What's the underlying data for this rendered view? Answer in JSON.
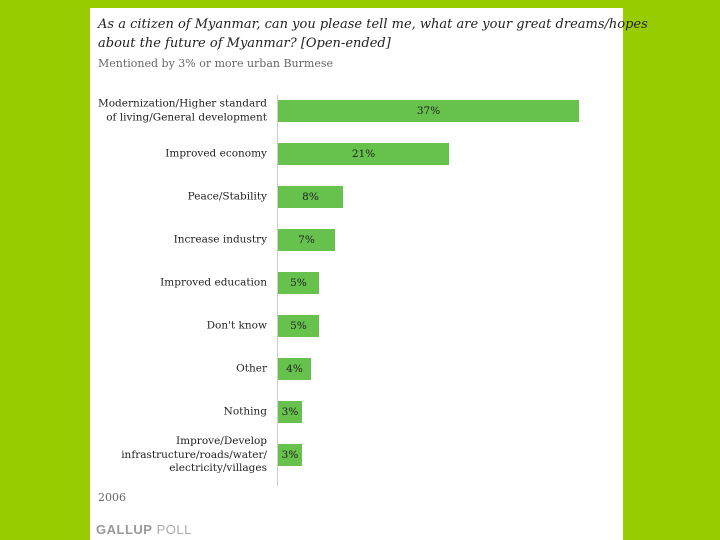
{
  "chart_data": {
    "type": "bar",
    "orientation": "horizontal",
    "title_line1": "As a citizen of Myanmar, can you please tell me, what are your great dreams/hopes",
    "title_line2": "about the future of Myanmar?  [Open-ended]",
    "subtitle": "Mentioned by 3% or more urban Burmese",
    "categories": [
      "Modernization/Higher standard\nof living/General development",
      "Improved economy",
      "Peace/Stability",
      "Increase industry",
      "Improved education",
      "Don't know",
      "Other",
      "Nothing",
      "Improve/Develop\ninfrastructure/roads/water/\nelectricity/villages"
    ],
    "values": [
      37,
      21,
      8,
      7,
      5,
      5,
      4,
      3,
      3
    ],
    "value_labels": [
      "37%",
      "21%",
      "8%",
      "7%",
      "5%",
      "5%",
      "4%",
      "3%",
      "3%"
    ],
    "xlim": [
      0,
      37
    ],
    "bar_color": "#66c24c",
    "grid": false,
    "legend": "none"
  },
  "footer": {
    "year": "2006",
    "brand_main": "GALLUP",
    "brand_suffix": " POLL"
  },
  "colors": {
    "page_background": "#99cc00",
    "panel_background": "#ffffff"
  }
}
